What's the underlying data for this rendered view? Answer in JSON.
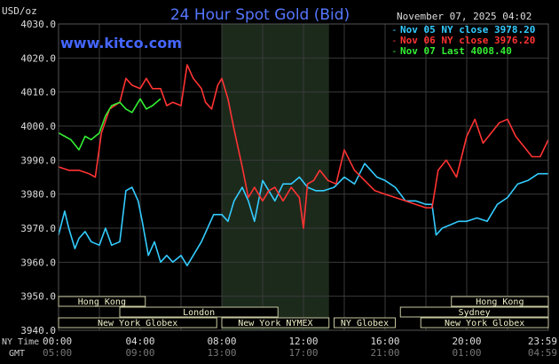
{
  "chart_data": {
    "type": "line",
    "title": "24 Hour Spot Gold (Bid)",
    "y_unit": "USD/oz",
    "watermark": "www.kitco.com",
    "timestamp": "November 07, 2025 04:02",
    "ylim": [
      3940,
      4030
    ],
    "yticks": [
      "4030.0",
      "4020.0",
      "4010.0",
      "4000.0",
      "3990.0",
      "3980.0",
      "3970.0",
      "3960.0",
      "3950.0",
      "3940.0"
    ],
    "x_range_hours": [
      0,
      24
    ],
    "ny_time_label": "NY Time",
    "gmt_label": "GMT",
    "ny_ticks": [
      "00:00",
      "04:00",
      "08:00",
      "12:00",
      "16:00",
      "20:00",
      "23:59"
    ],
    "gmt_ticks": [
      "05:00",
      "09:00",
      "13:00",
      "17:00",
      "21:00",
      "01:00",
      "04:59"
    ],
    "grid": true,
    "shaded_hours": [
      8,
      13.25
    ],
    "legend_position": "top-right",
    "legend": [
      {
        "label": "Nov 05 NY close 3978.20",
        "color": "#33ccff"
      },
      {
        "label": "Nov 06 NY close 3976.20",
        "color": "#ff3333"
      },
      {
        "label": "Nov 07 Last 4008.40",
        "color": "#33ee33"
      }
    ],
    "sessions": [
      {
        "name": "Hong Kong",
        "row": 0,
        "start": 0,
        "end": 4.25
      },
      {
        "name": "London",
        "row": 1,
        "start": 3,
        "end": 10.75
      },
      {
        "name": "New York Globex",
        "row": 2,
        "start": 0,
        "end": 7.75
      },
      {
        "name": "New York NYMEX",
        "row": 2,
        "start": 8,
        "end": 13.25
      },
      {
        "name": "NY Globex",
        "row": 2,
        "start": 13.5,
        "end": 16.5
      },
      {
        "name": "Hong Kong",
        "row": 0,
        "start": 19.25,
        "end": 24
      },
      {
        "name": "Sydney",
        "row": 1,
        "start": 16.75,
        "end": 24
      },
      {
        "name": "New York Globex",
        "row": 2,
        "start": 17.75,
        "end": 24
      }
    ],
    "series": [
      {
        "color": "#33ccff",
        "x": [
          0,
          0.3,
          0.5,
          0.8,
          1,
          1.3,
          1.6,
          2,
          2.3,
          2.6,
          3,
          3.3,
          3.6,
          3.9,
          4.1,
          4.4,
          4.7,
          5,
          5.3,
          5.6,
          6,
          6.3,
          6.6,
          7,
          7.3,
          7.6,
          8,
          8.3,
          8.6,
          9,
          9.3,
          9.6,
          10,
          10.3,
          10.6,
          11,
          11.4,
          11.8,
          12.2,
          12.6,
          13,
          13.5,
          14,
          14.5,
          15,
          15.3,
          15.6,
          16,
          16.5,
          17,
          17.5,
          18,
          18.3,
          18.5,
          18.8,
          19.2,
          19.6,
          20,
          20.5,
          21,
          21.5,
          22,
          22.5,
          23,
          23.5,
          24
        ],
        "y": [
          3968,
          3975,
          3970,
          3964,
          3967,
          3969,
          3966,
          3965,
          3970,
          3965,
          3966,
          3981,
          3982,
          3978,
          3972,
          3962,
          3966,
          3960,
          3962,
          3960,
          3962,
          3959,
          3962,
          3966,
          3970,
          3974,
          3974,
          3972,
          3978,
          3982,
          3978,
          3972,
          3984,
          3981,
          3978,
          3983,
          3983,
          3985,
          3982,
          3981,
          3981,
          3982,
          3985,
          3983,
          3989,
          3987,
          3985,
          3984,
          3982,
          3978,
          3978,
          3977,
          3977,
          3968,
          3970,
          3971,
          3972,
          3972,
          3973,
          3972,
          3977,
          3979,
          3983,
          3984,
          3986,
          3986
        ]
      },
      {
        "color": "#ff3333",
        "x": [
          0,
          0.5,
          1,
          1.5,
          1.8,
          2.1,
          2.5,
          3,
          3.3,
          3.6,
          4,
          4.3,
          4.6,
          5,
          5.3,
          5.6,
          6,
          6.3,
          6.6,
          7,
          7.2,
          7.5,
          7.8,
          8,
          8.3,
          8.6,
          9,
          9.3,
          9.6,
          10,
          10.3,
          10.6,
          11,
          11.4,
          11.8,
          12,
          12.2,
          12.5,
          12.8,
          13.2,
          13.6,
          14,
          14.5,
          15,
          15.5,
          16,
          16.5,
          17,
          17.5,
          18,
          18.3,
          18.6,
          19,
          19.5,
          20,
          20.4,
          20.8,
          21.2,
          21.6,
          22,
          22.4,
          22.8,
          23.2,
          23.6,
          24
        ],
        "y": [
          3988,
          3987,
          3987,
          3986,
          3985,
          3998,
          4005,
          4007,
          4014,
          4012,
          4011,
          4014,
          4011,
          4011,
          4006,
          4007,
          4006,
          4018,
          4014,
          4011,
          4007,
          4005,
          4012,
          4014,
          4008,
          3999,
          3988,
          3979,
          3982,
          3978,
          3981,
          3982,
          3978,
          3982,
          3979,
          3970,
          3983,
          3984,
          3987,
          3984,
          3983,
          3993,
          3987,
          3984,
          3981,
          3980,
          3979,
          3978,
          3977,
          3976,
          3976,
          3987,
          3990,
          3985,
          3997,
          4002,
          3995,
          3998,
          4001,
          4002,
          3997,
          3994,
          3991,
          3991,
          3996
        ]
      },
      {
        "color": "#33ee33",
        "x": [
          0,
          0.3,
          0.6,
          1,
          1.3,
          1.6,
          2,
          2.3,
          2.6,
          3,
          3.3,
          3.6,
          4,
          4.3,
          4.6,
          5
        ],
        "y": [
          3998,
          3997,
          3996,
          3993,
          3997,
          3996,
          3998,
          4003,
          4006,
          4007,
          4005,
          4004,
          4008,
          4005,
          4006,
          4008
        ]
      }
    ]
  }
}
